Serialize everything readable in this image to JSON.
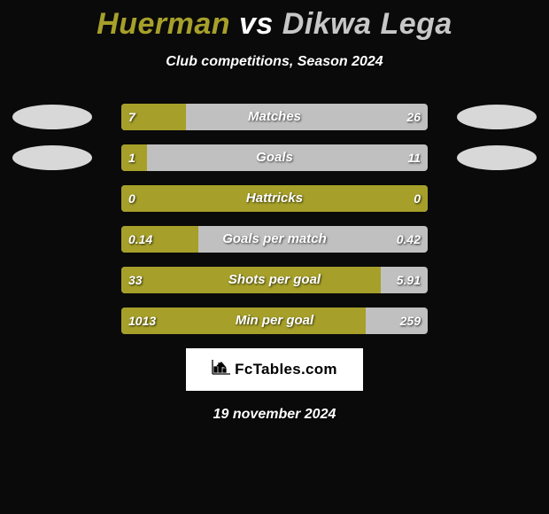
{
  "title": {
    "player1": "Huerman",
    "vs": "vs",
    "player2": "Dikwa Lega",
    "color1": "#a6a02a",
    "color_vs": "#ffffff",
    "color2": "#c7c7c7"
  },
  "subtitle": "Club competitions, Season 2024",
  "colors": {
    "background": "#0a0a0a",
    "bar_left": "#a6a02a",
    "bar_right": "#c0c0c0",
    "ellipse_left": "#d8d8d8",
    "ellipse_right": "#d8d8d8",
    "text": "#ffffff"
  },
  "chart": {
    "bar_track_width": 346,
    "rows": [
      {
        "label": "Matches",
        "left_value": "7",
        "right_value": "26",
        "left_num": 7,
        "right_num": 26,
        "show_ellipse": true
      },
      {
        "label": "Goals",
        "left_value": "1",
        "right_value": "11",
        "left_num": 1,
        "right_num": 11,
        "show_ellipse": true
      },
      {
        "label": "Hattricks",
        "left_value": "0",
        "right_value": "0",
        "left_num": 0,
        "right_num": 0,
        "show_ellipse": false
      },
      {
        "label": "Goals per match",
        "left_value": "0.14",
        "right_value": "0.42",
        "left_num": 0.14,
        "right_num": 0.42,
        "show_ellipse": false
      },
      {
        "label": "Shots per goal",
        "left_value": "33",
        "right_value": "5.91",
        "left_num": 33,
        "right_num": 5.91,
        "show_ellipse": false
      },
      {
        "label": "Min per goal",
        "left_value": "1013",
        "right_value": "259",
        "left_num": 1013,
        "right_num": 259,
        "show_ellipse": false
      }
    ]
  },
  "logo": {
    "icon": "📊",
    "text": "FcTables.com"
  },
  "date": "19 november 2024"
}
